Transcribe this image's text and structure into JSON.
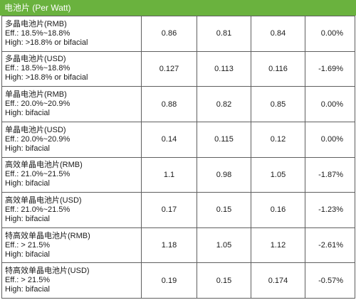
{
  "title": "电池片 (Per Watt)",
  "rows": [
    {
      "name": "多晶电池片(RMB)",
      "eff": "Eff.: 18.5%~18.8%",
      "high": "High: >18.8% or bifacial",
      "v1": "0.86",
      "v2": "0.81",
      "v3": "0.84",
      "change": "0.00%"
    },
    {
      "name": "多晶电池片(USD)",
      "eff": "Eff.: 18.5%~18.8%",
      "high": "High: >18.8% or bifacial",
      "v1": "0.127",
      "v2": "0.113",
      "v3": "0.116",
      "change": "-1.69%"
    },
    {
      "name": "单晶电池片(RMB)",
      "eff": "Eff.: 20.0%~20.9%",
      "high": "High: bifacial",
      "v1": "0.88",
      "v2": "0.82",
      "v3": "0.85",
      "change": "0.00%"
    },
    {
      "name": "单晶电池片(USD)",
      "eff": "Eff.: 20.0%~20.9%",
      "high": "High: bifacial",
      "v1": "0.14",
      "v2": "0.115",
      "v3": "0.12",
      "change": "0.00%"
    },
    {
      "name": "高效单晶电池片(RMB)",
      "eff": "Eff.: 21.0%~21.5%",
      "high": "High: bifacial",
      "v1": "1.1",
      "v2": "0.98",
      "v3": "1.05",
      "change": "-1.87%"
    },
    {
      "name": "高效单晶电池片(USD)",
      "eff": "Eff.: 21.0%~21.5%",
      "high": "High: bifacial",
      "v1": "0.17",
      "v2": "0.15",
      "v3": "0.16",
      "change": "-1.23%"
    },
    {
      "name": "特高效单晶电池片(RMB)",
      "eff": "Eff.: > 21.5%",
      "high": "High: bifacial",
      "v1": "1.18",
      "v2": "1.05",
      "v3": "1.12",
      "change": "-2.61%"
    },
    {
      "name": "特高效单晶电池片(USD)",
      "eff": "Eff.: > 21.5%",
      "high": "High: bifacial",
      "v1": "0.19",
      "v2": "0.15",
      "v3": "0.174",
      "change": "-0.57%"
    }
  ],
  "colors": {
    "header_bg": "#6ab23e",
    "header_text": "#ffffff",
    "border": "#5f5f5f"
  }
}
